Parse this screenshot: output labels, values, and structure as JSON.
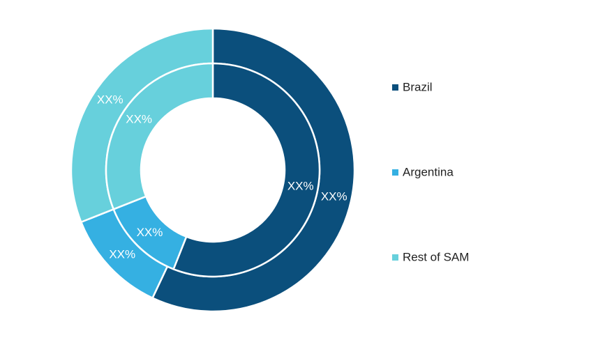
{
  "chart_data": {
    "type": "donut",
    "categories": [
      "Brazil",
      "Argentina",
      "Rest of SAM"
    ],
    "colors": [
      "#0b4f7c",
      "#35b0e2",
      "#67d0dc"
    ],
    "series": [
      {
        "values": [
          57,
          12,
          31
        ],
        "value_labels": [
          "XX%",
          "XX%",
          "XX%"
        ]
      },
      {
        "values": [
          56,
          13,
          31
        ],
        "value_labels": [
          "XX%",
          "XX%",
          "XX%"
        ]
      }
    ]
  }
}
